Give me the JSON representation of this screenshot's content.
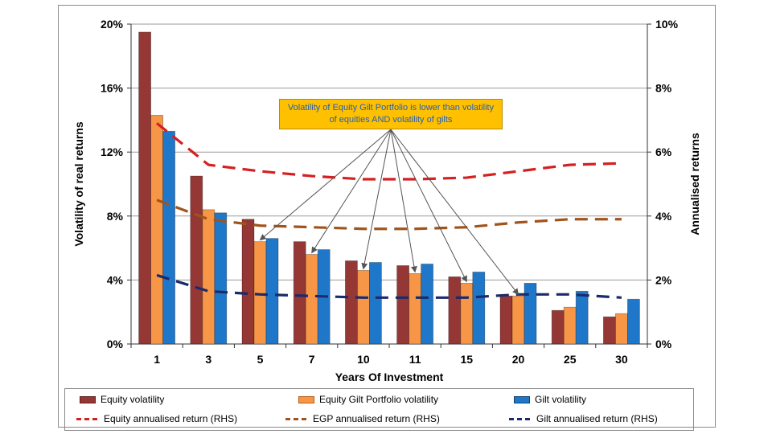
{
  "chart_data": {
    "type": "bar",
    "xlabel": "Years Of Investment",
    "ylabel": "Volatility of real returns",
    "y2label": "Annualised returns",
    "categories": [
      "1",
      "3",
      "5",
      "7",
      "10",
      "11",
      "15",
      "20",
      "25",
      "30"
    ],
    "ylim": [
      0,
      20
    ],
    "yticks": [
      "0%",
      "4%",
      "8%",
      "12%",
      "16%",
      "20%"
    ],
    "y2lim": [
      0,
      10
    ],
    "y2ticks": [
      "0%",
      "2%",
      "4%",
      "6%",
      "8%",
      "10%"
    ],
    "grid": true,
    "legend_position": "bottom",
    "bar_series": [
      {
        "name": "Equity volatility",
        "color": "#953735",
        "values": [
          19.5,
          10.5,
          7.8,
          6.4,
          5.2,
          4.9,
          4.2,
          3.0,
          2.1,
          1.7
        ]
      },
      {
        "name": "Equity Gilt Portfolio volatility",
        "color": "#f79646",
        "values": [
          14.3,
          8.4,
          6.4,
          5.6,
          4.6,
          4.4,
          3.8,
          3.0,
          2.3,
          1.9
        ]
      },
      {
        "name": "Gilt volatility",
        "color": "#1f77c9",
        "values": [
          13.3,
          8.2,
          6.6,
          5.9,
          5.1,
          5.0,
          4.5,
          3.8,
          3.3,
          2.8
        ]
      }
    ],
    "line_series": [
      {
        "name": "Equity annualised return (RHS)",
        "color": "#d42020",
        "values": [
          6.9,
          5.6,
          5.4,
          5.25,
          5.15,
          5.15,
          5.2,
          5.4,
          5.6,
          5.65
        ]
      },
      {
        "name": "EGP annualised return (RHS)",
        "color": "#a0541c",
        "values": [
          4.5,
          3.9,
          3.7,
          3.65,
          3.6,
          3.6,
          3.65,
          3.8,
          3.9,
          3.9
        ]
      },
      {
        "name": "Gilt annualised return (RHS)",
        "color": "#1b2a6b",
        "values": [
          2.15,
          1.65,
          1.55,
          1.5,
          1.45,
          1.45,
          1.45,
          1.55,
          1.55,
          1.45
        ]
      }
    ],
    "annotation": "Volatility of Equity Gilt Portfolio is lower than volatility of equities AND volatility of gilts",
    "annotation_targets": [
      2,
      3,
      4,
      5,
      6,
      7
    ]
  }
}
